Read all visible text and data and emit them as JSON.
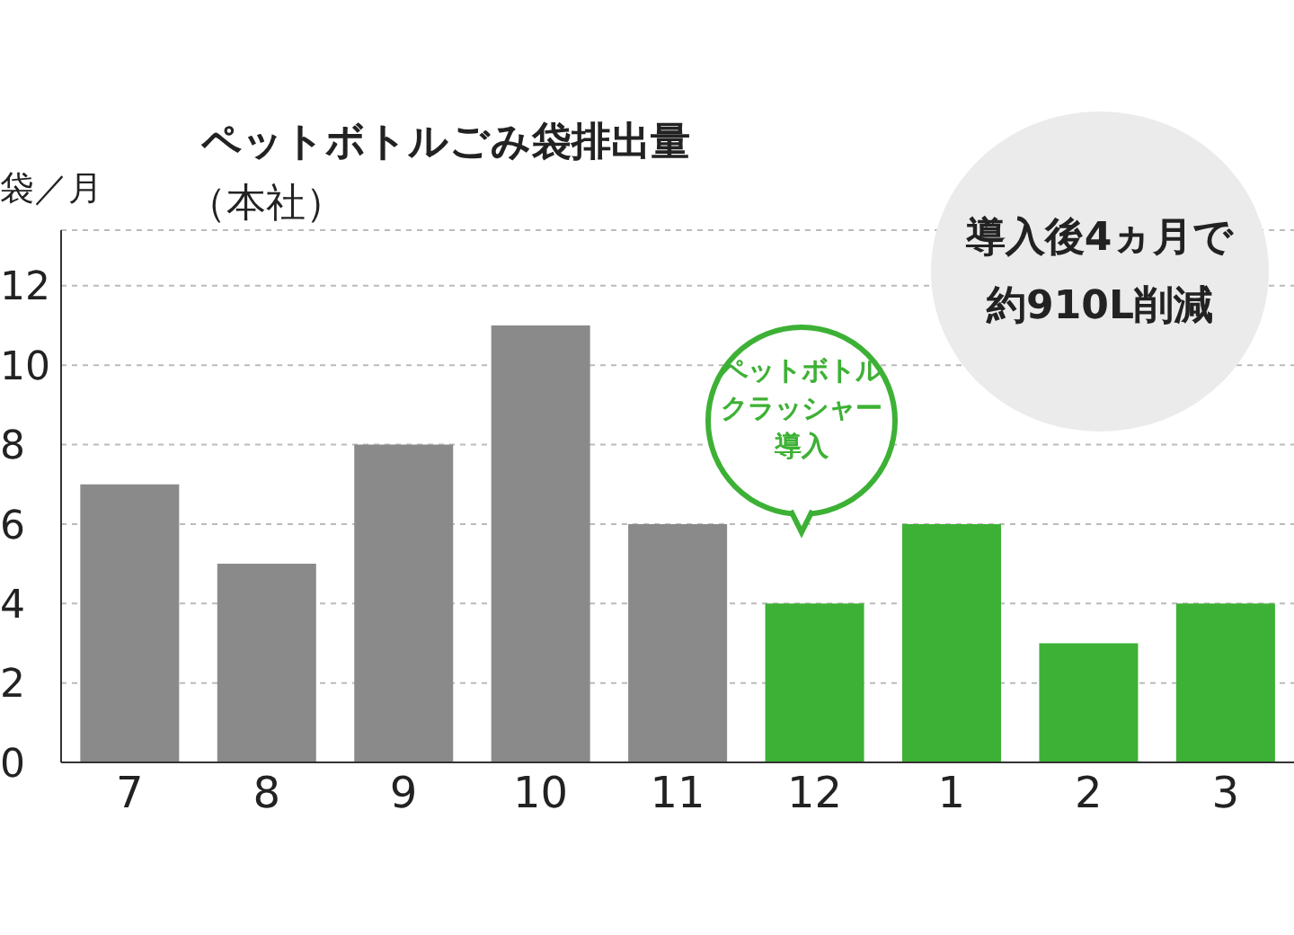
{
  "chart_data": {
    "type": "bar",
    "title": "ペットボトルごみ袋排出量",
    "subtitle": "（本社）",
    "ylabel": "袋／月",
    "categories": [
      "7",
      "8",
      "9",
      "10",
      "11",
      "12",
      "1",
      "2",
      "3"
    ],
    "values": [
      7,
      5,
      8,
      11,
      6,
      4,
      6,
      3,
      4
    ],
    "colors": [
      "#8a8a8a",
      "#8a8a8a",
      "#8a8a8a",
      "#8a8a8a",
      "#8a8a8a",
      "#3db135",
      "#3db135",
      "#3db135",
      "#3db135"
    ],
    "ylim": [
      0,
      13.4
    ],
    "yticks": [
      0,
      2,
      4,
      6,
      8,
      10,
      12
    ],
    "grid": "y",
    "annotations": [
      "ペットボトルクラッシャー導入",
      "導入後4ヵ月で約910L削減"
    ]
  }
}
